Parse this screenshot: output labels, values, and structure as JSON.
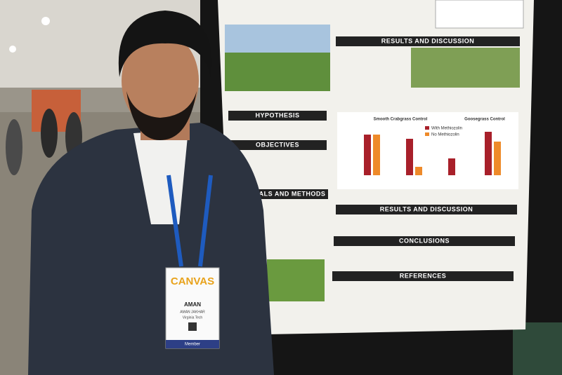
{
  "poster": {
    "sections": [
      "HYPOTHESIS",
      "OBJECTIVES",
      "RIALS AND METHODS",
      "RESULTS AND DISCUSSION",
      "RESULTS AND DISCUSSION",
      "CONCLUSIONS",
      "REFERENCES"
    ],
    "charts": {
      "left_title": "Smooth Crabgrass Control",
      "right_title": "Goosegrass Control",
      "legend": [
        "With Methiozolin",
        "No Methiozolin"
      ]
    }
  },
  "badge": {
    "event": "CANVAS",
    "name": "AMAN",
    "full_name": "AMAN JAKHAR",
    "affiliation": "Virginia Tech",
    "status": "Member"
  }
}
